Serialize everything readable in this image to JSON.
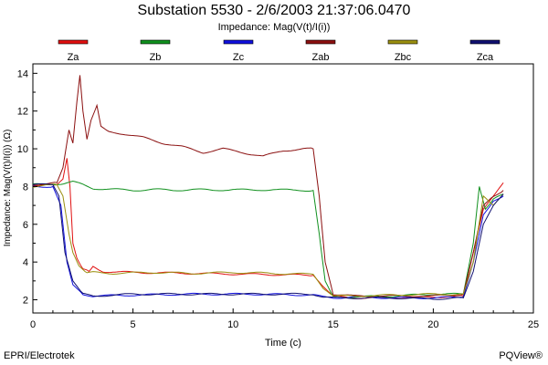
{
  "chart_data": {
    "type": "line",
    "title": "Substation 5530 - 2/6/2003 21:37:06.0470",
    "subtitle": "Impedance: Mag(V(t)/I(i))",
    "xlabel": "Time (c)",
    "ylabel": "Impedance: Mag(V(t)/I(i)) (Ω)",
    "xlim": [
      0,
      25
    ],
    "ylim": [
      1.3,
      14.5
    ],
    "xticks": [
      "0",
      "5",
      "10",
      "15",
      "20",
      "25"
    ],
    "yticks": [
      "2",
      "4",
      "6",
      "8",
      "10",
      "12",
      "14"
    ],
    "grid": false,
    "legend_position": "top",
    "series": [
      {
        "name": "Za",
        "color": "#e01010",
        "x": [
          0,
          1.2,
          1.5,
          1.7,
          1.85,
          2.0,
          2.2,
          2.5,
          2.8,
          3.0,
          3.5,
          5,
          8,
          11,
          14,
          14.5,
          15,
          16,
          18,
          20,
          21.5,
          22,
          22.5,
          23,
          23.5
        ],
        "y": [
          8.0,
          8.1,
          8.4,
          9.5,
          8.0,
          5.0,
          4.2,
          3.6,
          3.5,
          3.75,
          3.5,
          3.45,
          3.4,
          3.35,
          3.3,
          2.7,
          2.2,
          2.1,
          2.1,
          2.15,
          2.2,
          4.5,
          6.8,
          7.5,
          8.2
        ]
      },
      {
        "name": "Zb",
        "color": "#10901e",
        "x": [
          0,
          1.5,
          2.0,
          2.5,
          3.0,
          4,
          5,
          6,
          7,
          8,
          9,
          10,
          11,
          12,
          13,
          14,
          14.3,
          14.6,
          15,
          16,
          18,
          20,
          21.5,
          22,
          22.3,
          22.6,
          23,
          23.5
        ],
        "y": [
          8.1,
          8.15,
          8.25,
          8.1,
          7.9,
          7.85,
          7.8,
          7.85,
          7.8,
          7.85,
          7.8,
          7.85,
          7.8,
          7.85,
          7.8,
          7.8,
          5.5,
          3.0,
          2.15,
          2.15,
          2.2,
          2.3,
          2.3,
          5.0,
          8.0,
          6.8,
          7.3,
          7.6
        ]
      },
      {
        "name": "Zc",
        "color": "#1010dd",
        "x": [
          0,
          1.0,
          1.4,
          1.7,
          2.0,
          2.5,
          3,
          5,
          8,
          11,
          14,
          14.5,
          15,
          16,
          18,
          20,
          21.5,
          22,
          22.5,
          23,
          23.5
        ],
        "y": [
          8.0,
          8.0,
          7.0,
          4.0,
          2.8,
          2.3,
          2.2,
          2.25,
          2.3,
          2.3,
          2.25,
          2.15,
          2.1,
          2.15,
          2.1,
          2.1,
          2.15,
          4.0,
          6.5,
          7.2,
          7.5
        ]
      },
      {
        "name": "Zab",
        "color": "#8b1010",
        "x": [
          0,
          1.2,
          1.5,
          1.8,
          2.0,
          2.2,
          2.35,
          2.5,
          2.7,
          2.9,
          3.2,
          3.4,
          3.8,
          4.5,
          5.5,
          6.5,
          7.5,
          8.5,
          9.5,
          10.5,
          11.5,
          12.5,
          13.5,
          14.0,
          14.3,
          14.6,
          15,
          16,
          18,
          20,
          21.5,
          22,
          22.5,
          23,
          23.5
        ],
        "y": [
          8.1,
          8.2,
          9.0,
          11.0,
          10.3,
          12.5,
          13.9,
          12.0,
          10.5,
          11.5,
          12.3,
          11.2,
          10.9,
          10.8,
          10.6,
          10.3,
          10.1,
          9.8,
          10.0,
          9.8,
          9.6,
          9.9,
          10.0,
          10.0,
          7.5,
          4.0,
          2.3,
          2.2,
          2.2,
          2.2,
          2.3,
          4.5,
          7.0,
          7.5,
          7.8
        ]
      },
      {
        "name": "Zbc",
        "color": "#9a8f10",
        "x": [
          0,
          1.2,
          1.5,
          1.8,
          2.0,
          2.3,
          2.7,
          3.0,
          4,
          6,
          8,
          10,
          12,
          14,
          14.5,
          15,
          16,
          18,
          20,
          21.5,
          22,
          22.5,
          23,
          23.5
        ],
        "y": [
          8.0,
          8.1,
          7.5,
          5.5,
          4.5,
          3.8,
          3.4,
          3.45,
          3.4,
          3.45,
          3.4,
          3.45,
          3.4,
          3.35,
          2.6,
          2.2,
          2.2,
          2.25,
          2.3,
          2.3,
          4.0,
          7.5,
          7.0,
          7.6
        ]
      },
      {
        "name": "Zca",
        "color": "#101070",
        "x": [
          0,
          1.0,
          1.3,
          1.6,
          2.0,
          2.5,
          3,
          5,
          8,
          11,
          14,
          14.5,
          15,
          16,
          18,
          20,
          21.5,
          22,
          22.5,
          23,
          23.5
        ],
        "y": [
          8.1,
          8.1,
          7.5,
          4.5,
          3.0,
          2.3,
          2.2,
          2.3,
          2.3,
          2.3,
          2.3,
          2.15,
          2.1,
          2.1,
          2.1,
          2.05,
          2.1,
          3.5,
          6.0,
          7.0,
          7.6
        ]
      }
    ]
  },
  "footer": {
    "left": "EPRI/Electrotek",
    "right": "PQView®"
  }
}
